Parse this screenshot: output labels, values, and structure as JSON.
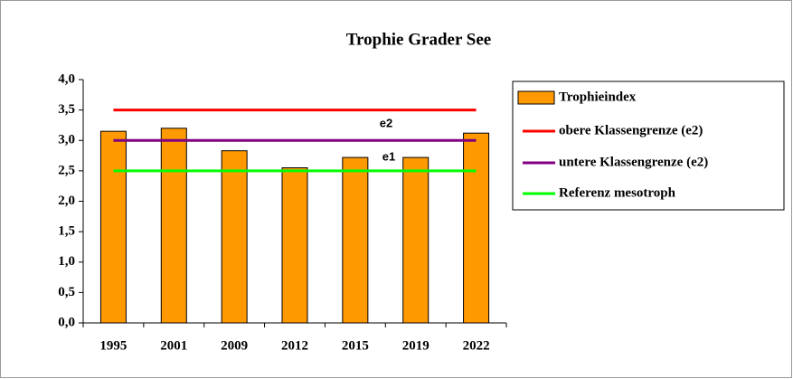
{
  "chart_data": {
    "type": "bar",
    "title": "Trophie Grader See",
    "categories": [
      "1995",
      "2001",
      "2009",
      "2012",
      "2015",
      "2019",
      "2022"
    ],
    "series": [
      {
        "name": "Trophieindex",
        "type": "bar",
        "color": "#ff9900",
        "values": [
          3.15,
          3.2,
          2.83,
          2.55,
          2.72,
          2.72,
          3.12
        ]
      },
      {
        "name": "obere Klassengrenze (e2)",
        "type": "line",
        "color": "#ff0000",
        "values": [
          3.5,
          3.5,
          3.5,
          3.5,
          3.5,
          3.5,
          3.5
        ]
      },
      {
        "name": "untere Klassengrenze (e2)",
        "type": "line",
        "color": "#800080",
        "values": [
          3.0,
          3.0,
          3.0,
          3.0,
          3.0,
          3.0,
          3.0
        ]
      },
      {
        "name": "Referenz mesotroph",
        "type": "line",
        "color": "#00ff00",
        "values": [
          2.5,
          2.5,
          2.5,
          2.5,
          2.5,
          2.5,
          2.5
        ]
      }
    ],
    "annotations": [
      "e2",
      "e1"
    ],
    "ylim": [
      0,
      4
    ],
    "yticks": [
      {
        "value": 0,
        "label": "0,0"
      },
      {
        "value": 0.5,
        "label": "0,5"
      },
      {
        "value": 1,
        "label": "1,0"
      },
      {
        "value": 1.5,
        "label": "1,5"
      },
      {
        "value": 2,
        "label": "2,0"
      },
      {
        "value": 2.5,
        "label": "2,5"
      },
      {
        "value": 3,
        "label": "3,0"
      },
      {
        "value": 3.5,
        "label": "3,5"
      },
      {
        "value": 4,
        "label": "4,0"
      }
    ],
    "grid": false,
    "legend": "right"
  }
}
